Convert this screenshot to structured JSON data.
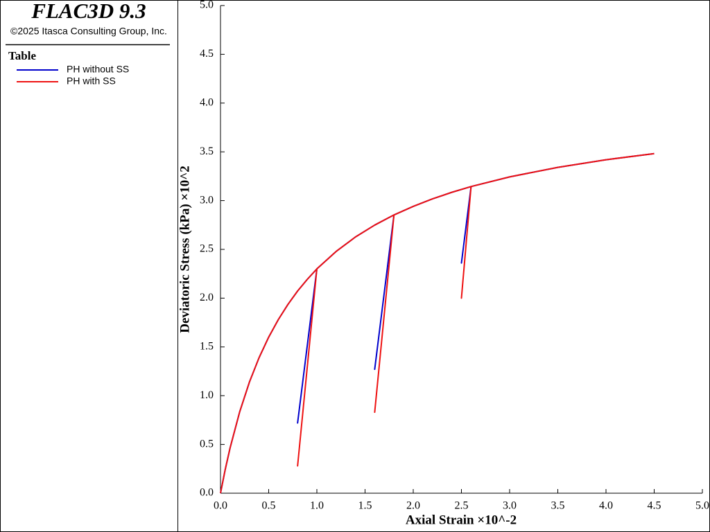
{
  "chart_data": {
    "type": "line",
    "title": "FLAC3D 9.3",
    "subtitle": "©2025 Itasca Consulting Group, Inc.",
    "legend_title": "Table",
    "xlabel": "Axial Strain ×10^-2",
    "ylabel": "Deviatoric Stress (kPa) ×10^2",
    "x": [
      0,
      0.05,
      0.1,
      0.2,
      0.3,
      0.4,
      0.5,
      0.6,
      0.7,
      0.8,
      0.9,
      1.0,
      0.8,
      1.0,
      1.2,
      1.4,
      1.6,
      1.8,
      1.6,
      1.8,
      2.0,
      2.2,
      2.4,
      2.6,
      2.5,
      2.6,
      3.0,
      3.5,
      4.0,
      4.5
    ],
    "series": [
      {
        "name": "PH without SS",
        "color": "#0000cc",
        "values": [
          0,
          0.247,
          0.466,
          0.837,
          1.139,
          1.389,
          1.6,
          1.78,
          1.936,
          2.073,
          2.192,
          2.3,
          0.72,
          2.3,
          2.479,
          2.627,
          2.749,
          2.853,
          1.27,
          2.853,
          2.941,
          3.018,
          3.085,
          3.144,
          2.36,
          3.144,
          3.243,
          3.341,
          3.419,
          3.482
        ]
      },
      {
        "name": "PH with SS",
        "color": "#ee1111",
        "values": [
          0,
          0.247,
          0.466,
          0.837,
          1.139,
          1.389,
          1.6,
          1.78,
          1.936,
          2.073,
          2.192,
          2.3,
          0.28,
          2.3,
          2.479,
          2.627,
          2.749,
          2.853,
          0.83,
          2.853,
          2.941,
          3.018,
          3.085,
          3.144,
          2.0,
          3.144,
          3.243,
          3.341,
          3.419,
          3.482
        ]
      }
    ],
    "xlim": [
      0,
      5
    ],
    "ylim": [
      0,
      5
    ],
    "xticks": [
      {
        "value": 0,
        "label": "0.0"
      },
      {
        "value": 0.5,
        "label": "0.5"
      },
      {
        "value": 1,
        "label": "1.0"
      },
      {
        "value": 1.5,
        "label": "1.5"
      },
      {
        "value": 2,
        "label": "2.0"
      },
      {
        "value": 2.5,
        "label": "2.5"
      },
      {
        "value": 3,
        "label": "3.0"
      },
      {
        "value": 3.5,
        "label": "3.5"
      },
      {
        "value": 4,
        "label": "4.0"
      },
      {
        "value": 4.5,
        "label": "4.5"
      },
      {
        "value": 5,
        "label": "5.0"
      }
    ],
    "yticks": [
      {
        "value": 0,
        "label": "0.0"
      },
      {
        "value": 0.5,
        "label": "0.5"
      },
      {
        "value": 1,
        "label": "1.0"
      },
      {
        "value": 1.5,
        "label": "1.5"
      },
      {
        "value": 2,
        "label": "2.0"
      },
      {
        "value": 2.5,
        "label": "2.5"
      },
      {
        "value": 3,
        "label": "3.0"
      },
      {
        "value": 3.5,
        "label": "3.5"
      },
      {
        "value": 4,
        "label": "4.0"
      },
      {
        "value": 4.5,
        "label": "4.5"
      },
      {
        "value": 5,
        "label": "5.0"
      }
    ]
  }
}
